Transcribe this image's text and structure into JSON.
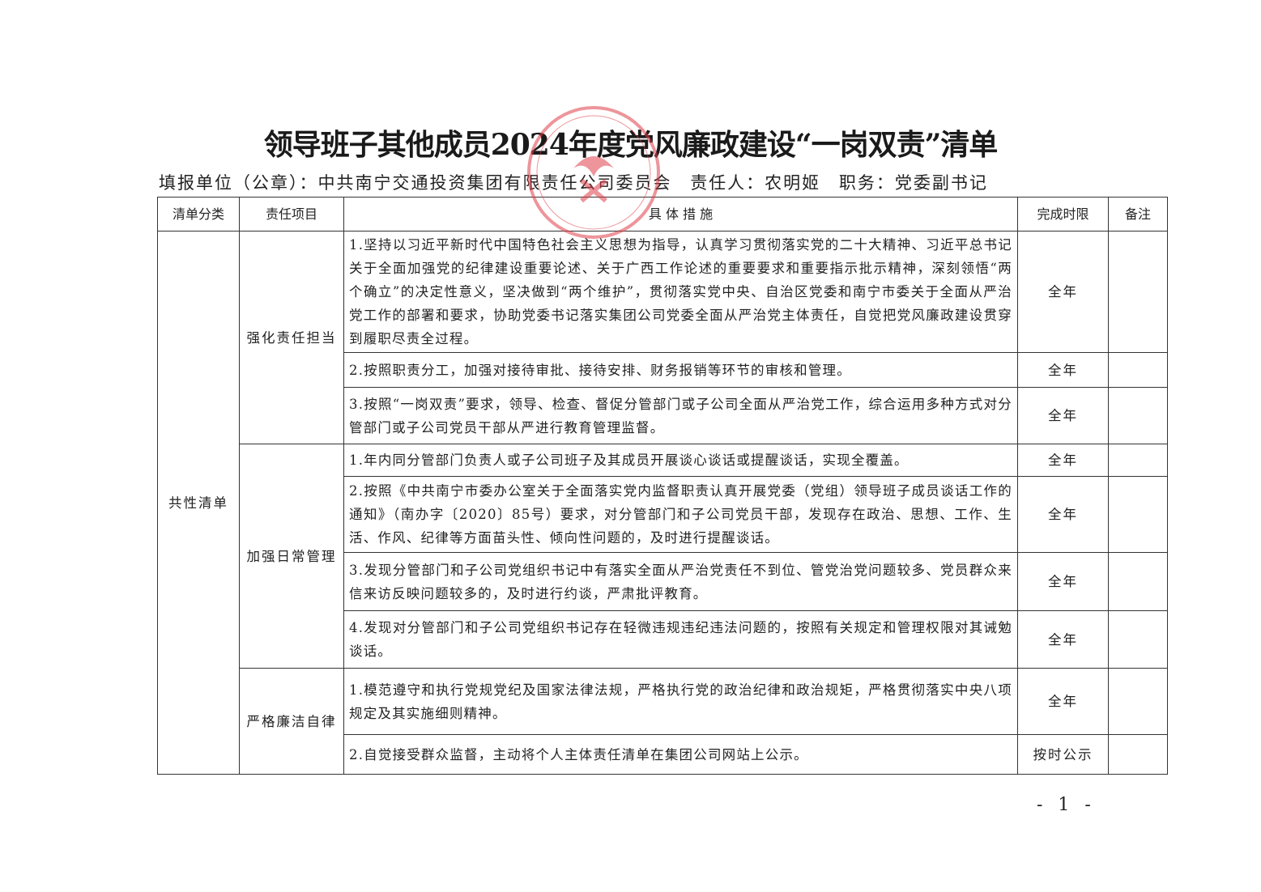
{
  "title": "领导班子其他成员2024年度党风廉政建设“一岗双责”清单",
  "header": {
    "unit": "填报单位（公章）：中共南宁交通投资集团有限责任公司委员会",
    "person": "责任人：农明姬",
    "position": "职务：党委副书记"
  },
  "stamp": {
    "text": "中共南宁交通投资集团有限责任公司委员会",
    "color": "#e0404a"
  },
  "table": {
    "columns": [
      "清单分类",
      "责任项目",
      "具 体 措 施",
      "完成时限",
      "备注"
    ],
    "category": "共性清单",
    "groups": [
      {
        "item": "强化责任担当",
        "rows": [
          {
            "measure": "1.坚持以习近平新时代中国特色社会主义思想为指导，认真学习贯彻落实党的二十大精神、习近平总书记关于全面加强党的纪律建设重要论述、关于广西工作论述的重要要求和重要指示批示精神，深刻领悟“两个确立”的决定性意义，坚决做到“两个维护”，贯彻落实党中央、自治区党委和南宁市委关于全面从严治党工作的部署和要求，协助党委书记落实集团公司党委全面从严治党主体责任，自觉把党风廉政建设贯穿到履职尽责全过程。",
            "deadline": "全年",
            "note": ""
          },
          {
            "measure": "2.按照职责分工，加强对接待审批、接待安排、财务报销等环节的审核和管理。",
            "deadline": "全年",
            "note": ""
          },
          {
            "measure": "3.按照“一岗双责”要求，领导、检查、督促分管部门或子公司全面从严治党工作，综合运用多种方式对分管部门或子公司党员干部从严进行教育管理监督。",
            "deadline": "全年",
            "note": ""
          }
        ]
      },
      {
        "item": "加强日常管理",
        "rows": [
          {
            "measure": "1.年内同分管部门负责人或子公司班子及其成员开展谈心谈话或提醒谈话，实现全覆盖。",
            "deadline": "全年",
            "note": ""
          },
          {
            "measure": "2.按照《中共南宁市委办公室关于全面落实党内监督职责认真开展党委（党组）领导班子成员谈话工作的通知》（南办字〔2020〕85号）要求，对分管部门和子公司党员干部，发现存在政治、思想、工作、生活、作风、纪律等方面苗头性、倾向性问题的，及时进行提醒谈话。",
            "deadline": "全年",
            "note": ""
          },
          {
            "measure": "3.发现分管部门和子公司党组织书记中有落实全面从严治党责任不到位、管党治党问题较多、党员群众来信来访反映问题较多的，及时进行约谈，严肃批评教育。",
            "deadline": "全年",
            "note": ""
          },
          {
            "measure": "4.发现对分管部门和子公司党组织书记存在轻微违规违纪违法问题的，按照有关规定和管理权限对其诫勉谈话。",
            "deadline": "全年",
            "note": ""
          }
        ]
      },
      {
        "item": "严格廉洁自律",
        "rows": [
          {
            "measure": "1.模范遵守和执行党规党纪及国家法律法规，严格执行党的政治纪律和政治规矩，严格贯彻落实中央八项规定及其实施细则精神。",
            "deadline": "全年",
            "note": ""
          },
          {
            "measure": "2.自觉接受群众监督，主动将个人主体责任清单在集团公司网站上公示。",
            "deadline": "按时公示",
            "note": ""
          }
        ]
      }
    ]
  },
  "page_number": "- 1 -"
}
